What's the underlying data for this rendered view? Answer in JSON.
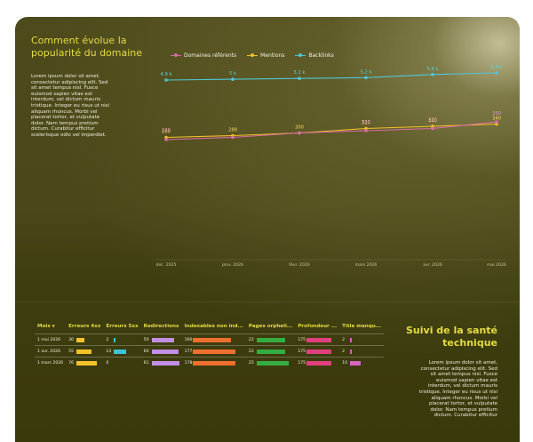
{
  "section_popularity": {
    "title": "Comment évolue la popularité du domaine",
    "body": "Lorem ipsum dolor sit amet, consectetur adipiscing elit. Sed sit amet tempus nisl. Fusce euismod sapien vitae est interdum, vel dictum mauris tristique. Integer eu risus ut nisi aliquam rhoncus. Morbi vel placerat tortor, et vulputate dolor. Nam tempus pretium dictum. Curabitur efficitur scelerisque odio vel imperdiet."
  },
  "chart_data": {
    "type": "line",
    "x": [
      "déc. 2025",
      "janv. 2026",
      "févr. 2026",
      "mars 2026",
      "avr. 2026",
      "mai 2026"
    ],
    "series": [
      {
        "name": "Domaines référents",
        "color": "#d96aa4",
        "values": [
          270,
          280,
          300,
          310,
          320,
          350
        ]
      },
      {
        "name": "Mentions",
        "color": "#f2c12a",
        "values": [
          280,
          288,
          300,
          320,
          330,
          340
        ]
      },
      {
        "name": "Backlinks",
        "color": "#4fc7d9",
        "values": [
          4.9,
          5,
          5.1,
          5.2,
          5.6,
          5.8
        ]
      }
    ],
    "data_labels": {
      "Backlinks": [
        "4,9 k",
        "5 k",
        "5,1 k",
        "5,2 k",
        "5,6 k",
        "5,8 k"
      ],
      "Mentions": [
        "280",
        "288",
        "300",
        "320",
        "330",
        "340"
      ],
      "Domaines référents": [
        "270",
        "",
        "",
        "310",
        "320",
        "350"
      ]
    },
    "legend_position": "top",
    "grid": false
  },
  "section_health": {
    "title": "Suivi de la santé technique",
    "body": "Lorem ipsum dolor sit amet, consectetur adipiscing elit. Sed sit amet tempus nisl. Fusce euismod sapien vitae est interdum, vel dictum mauris tristique. Integer eu risus ut nisi aliquam rhoncus. Morbi vel placerat tortor, et vulputate dolor. Nam tempus pretium dictum. Curabitur efficitur"
  },
  "table": {
    "sort_indicator": "▼",
    "columns": [
      {
        "label": "Mois",
        "color": null,
        "max": null
      },
      {
        "label": "Erreurs 4xx",
        "color": "#f4c32b",
        "max": 80
      },
      {
        "label": "Erreurs 5xx",
        "color": "#3ec3d6",
        "max": 30
      },
      {
        "label": "Redirections",
        "color": "#c18fe3",
        "max": 60
      },
      {
        "label": "Indexables non ind...",
        "color": "#ef6f2e",
        "max": 170
      },
      {
        "label": "Pages orpheli...",
        "color": "#35ad42",
        "max": 25
      },
      {
        "label": "Profondeur ...",
        "color": "#e0407e",
        "max": 175
      },
      {
        "label": "Title manqu...",
        "color": "#d864c0",
        "max": 10
      }
    ],
    "rows": [
      [
        "1 mai 2026",
        "30",
        "2",
        "50",
        "160",
        "22",
        "175",
        "2"
      ],
      [
        "1 avr. 2026",
        "55",
        "13",
        "60",
        "177",
        "22",
        "175",
        "2"
      ],
      [
        "1 mars 2026",
        "76",
        "0",
        "61",
        "178",
        "25",
        "175",
        "10"
      ]
    ]
  }
}
